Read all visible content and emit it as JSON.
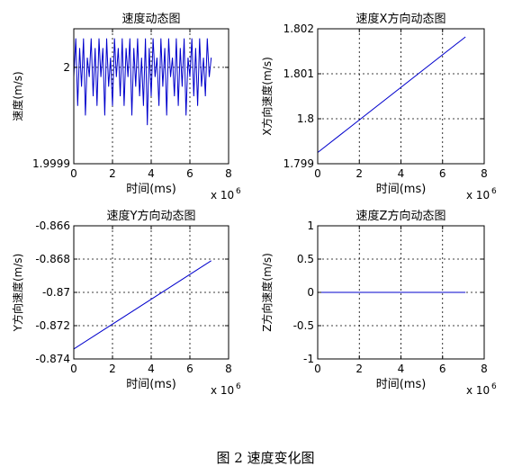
{
  "caption": "图 2  速度变化图",
  "chart_data": [
    {
      "type": "line",
      "title": "速度动态图",
      "xlabel": "时间(ms)",
      "ylabel": "速度(m/s)",
      "x_multiplier_label": "x 10",
      "x_multiplier_exponent": "6",
      "xlim": [
        0,
        8
      ],
      "ylim": [
        1.9999,
        2.00004
      ],
      "xticks": [
        0,
        2,
        4,
        6,
        8
      ],
      "xtick_labels": [
        "0",
        "2",
        "4",
        "6",
        "8"
      ],
      "yticks": [
        1.9999,
        2
      ],
      "ytick_labels": [
        "1.9999",
        "2"
      ],
      "grid": true,
      "line_color": "#0000cc",
      "series": [
        {
          "x": [
            0.0,
            0.1,
            0.2,
            0.3,
            0.4,
            0.5,
            0.6,
            0.7,
            0.8,
            0.9,
            1.0,
            1.1,
            1.2,
            1.3,
            1.4,
            1.5,
            1.6,
            1.7,
            1.8,
            1.9,
            2.0,
            2.1,
            2.2,
            2.3,
            2.4,
            2.5,
            2.6,
            2.7,
            2.8,
            2.9,
            3.0,
            3.1,
            3.2,
            3.3,
            3.4,
            3.5,
            3.6,
            3.7,
            3.8,
            3.9,
            4.0,
            4.1,
            4.2,
            4.3,
            4.4,
            4.5,
            4.6,
            4.7,
            4.8,
            4.9,
            5.0,
            5.1,
            5.2,
            5.3,
            5.4,
            5.5,
            5.6,
            5.7,
            5.8,
            5.9,
            6.0,
            6.1,
            6.2,
            6.3,
            6.4,
            6.5,
            6.6,
            6.7,
            6.8,
            6.9,
            7.0,
            7.1
          ],
          "y": [
            1.99999,
            2.00003,
            1.99996,
            2.00002,
            1.99998,
            2.00003,
            1.99995,
            2.00001,
            1.99999,
            2.00003,
            1.99997,
            2.00002,
            1.99996,
            2.00003,
            1.99999,
            2.00002,
            1.99995,
            2.00003,
            1.99998,
            2.00001,
            1.99996,
            2.00003,
            1.99999,
            2.00002,
            1.99997,
            2.00003,
            1.99996,
            2.00002,
            1.99999,
            2.00003,
            1.99995,
            2.00002,
            1.99998,
            2.00003,
            1.99997,
            2.00001,
            1.99996,
            2.00003,
            1.99994,
            2.00002,
            1.99997,
            2.00003,
            1.99999,
            2.00001,
            1.99996,
            2.00003,
            1.99998,
            2.00002,
            1.99995,
            2.00003,
            1.99999,
            2.00001,
            1.99997,
            2.00003,
            1.99996,
            2.00002,
            1.99998,
            2.00003,
            1.99995,
            2.00001,
            1.99999,
            2.00003,
            1.99997,
            2.00002,
            1.99996,
            2.00003,
            1.99998,
            2.00001,
            1.99997,
            2.00003,
            1.99999,
            2.00001
          ]
        }
      ]
    },
    {
      "type": "line",
      "title": "速度X方向动态图",
      "xlabel": "时间(ms)",
      "ylabel": "X方向速度(m/s)",
      "x_multiplier_label": "x 10",
      "x_multiplier_exponent": "6",
      "xlim": [
        0,
        8
      ],
      "ylim": [
        1.799,
        1.802
      ],
      "xticks": [
        0,
        2,
        4,
        6,
        8
      ],
      "xtick_labels": [
        "0",
        "2",
        "4",
        "6",
        "8"
      ],
      "yticks": [
        1.799,
        1.8,
        1.801,
        1.802
      ],
      "ytick_labels": [
        "1.799",
        "1.8",
        "1.801",
        "1.802"
      ],
      "grid": true,
      "line_color": "#0000cc",
      "series": [
        {
          "x": [
            0.0,
            7.1
          ],
          "y": [
            1.79925,
            1.80182
          ]
        }
      ]
    },
    {
      "type": "line",
      "title": "速度Y方向动态图",
      "xlabel": "时间(ms)",
      "ylabel": "Y方向速度(m/s)",
      "x_multiplier_label": "x 10",
      "x_multiplier_exponent": "6",
      "xlim": [
        0,
        8
      ],
      "ylim": [
        -0.874,
        -0.866
      ],
      "xticks": [
        0,
        2,
        4,
        6,
        8
      ],
      "xtick_labels": [
        "0",
        "2",
        "4",
        "6",
        "8"
      ],
      "yticks": [
        -0.874,
        -0.872,
        -0.87,
        -0.868,
        -0.866
      ],
      "ytick_labels": [
        "-0.874",
        "-0.872",
        "-0.87",
        "-0.868",
        "-0.866"
      ],
      "grid": true,
      "line_color": "#0000cc",
      "series": [
        {
          "x": [
            0.0,
            7.1
          ],
          "y": [
            -0.8734,
            -0.8681
          ]
        }
      ]
    },
    {
      "type": "line",
      "title": "速度Z方向动态图",
      "xlabel": "时间(ms)",
      "ylabel": "Z方向速度(m/s)",
      "x_multiplier_label": "x 10",
      "x_multiplier_exponent": "6",
      "xlim": [
        0,
        8
      ],
      "ylim": [
        -1,
        1
      ],
      "xticks": [
        0,
        2,
        4,
        6,
        8
      ],
      "xtick_labels": [
        "0",
        "2",
        "4",
        "6",
        "8"
      ],
      "yticks": [
        -1,
        -0.5,
        0,
        0.5,
        1
      ],
      "ytick_labels": [
        "-1",
        "-0.5",
        "0",
        "0.5",
        "1"
      ],
      "grid": true,
      "line_color": "#0000cc",
      "series": [
        {
          "x": [
            0.0,
            7.1
          ],
          "y": [
            0,
            0
          ]
        }
      ]
    }
  ]
}
